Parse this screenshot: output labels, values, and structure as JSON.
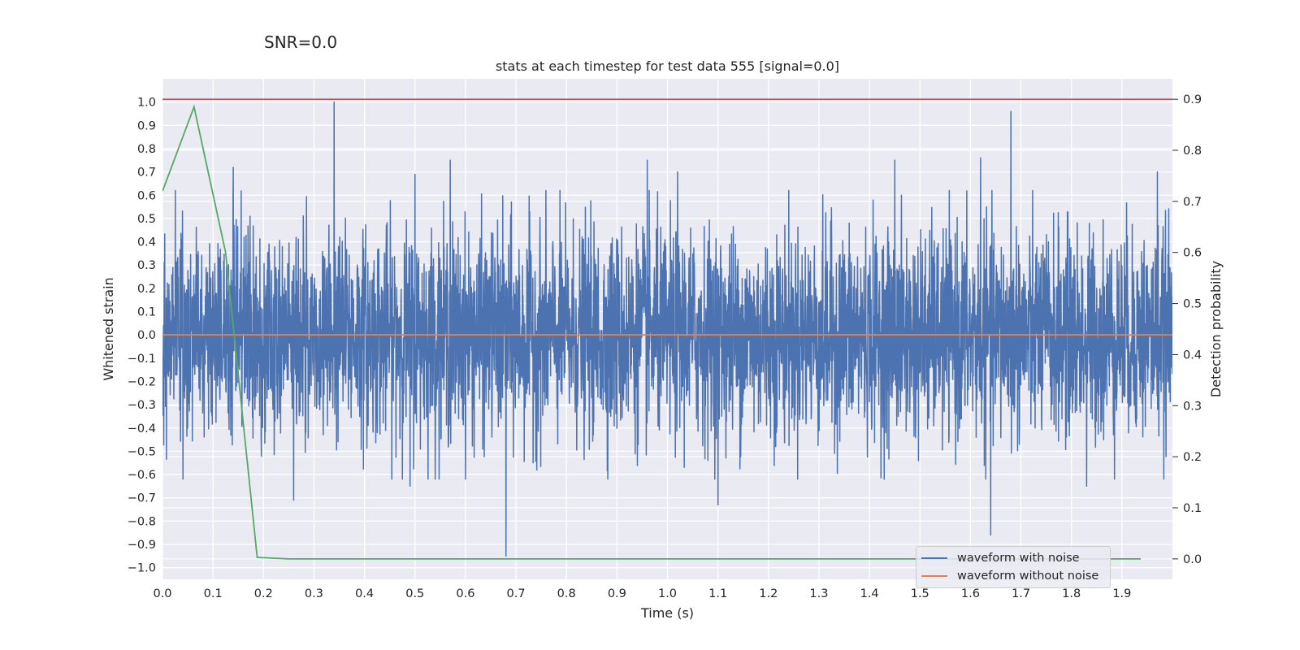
{
  "suptitle": "SNR=0.0",
  "chart_data": {
    "type": "line",
    "title": "stats at each timestep for test data 555 [signal=0.0]",
    "xlabel": "Time (s)",
    "ylabel": "Whitened strain",
    "y2label": "Detection probability",
    "xlim": [
      0.0,
      2.0
    ],
    "ylim": [
      -1.05,
      1.1
    ],
    "y2lim": [
      -0.04,
      0.94
    ],
    "xticks": [
      0.0,
      0.1,
      0.2,
      0.3,
      0.4,
      0.5,
      0.6,
      0.7,
      0.8,
      0.9,
      1.0,
      1.1,
      1.2,
      1.3,
      1.4,
      1.5,
      1.6,
      1.7,
      1.8,
      1.9
    ],
    "xtick_labels": [
      "0.0",
      "0.1",
      "0.2",
      "0.3",
      "0.4",
      "0.5",
      "0.6",
      "0.7",
      "0.8",
      "0.9",
      "1.0",
      "1.1",
      "1.2",
      "1.3",
      "1.4",
      "1.5",
      "1.6",
      "1.7",
      "1.8",
      "1.9"
    ],
    "yticks": [
      -1.0,
      -0.9,
      -0.8,
      -0.7,
      -0.6,
      -0.5,
      -0.4,
      -0.3,
      -0.2,
      -0.1,
      0.0,
      0.1,
      0.2,
      0.3,
      0.4,
      0.5,
      0.6,
      0.7,
      0.8,
      0.9,
      1.0
    ],
    "ytick_labels": [
      "−1.0",
      "−0.9",
      "−0.8",
      "−0.7",
      "−0.6",
      "−0.5",
      "−0.4",
      "−0.3",
      "−0.2",
      "−0.1",
      "0.0",
      "0.1",
      "0.2",
      "0.3",
      "0.4",
      "0.5",
      "0.6",
      "0.7",
      "0.8",
      "0.9",
      "1.0"
    ],
    "y2ticks": [
      0.0,
      0.1,
      0.2,
      0.3,
      0.4,
      0.5,
      0.6,
      0.7,
      0.8,
      0.9
    ],
    "y2tick_labels": [
      "0.0",
      "0.1",
      "0.2",
      "0.3",
      "0.4",
      "0.5",
      "0.6",
      "0.7",
      "0.8",
      "0.9"
    ],
    "grid": true,
    "legend_position": "lower-right",
    "threshold": {
      "value": 0.9,
      "axis": "y2",
      "color": "#c44e52"
    },
    "series": [
      {
        "name": "waveform with noise",
        "color": "#4c72b0",
        "axis": "y",
        "sample_rate_hz": 2048,
        "duration_s": 2.0,
        "noise_sigma": 0.22,
        "peaks": [
          {
            "x": 0.34,
            "y": 1.0
          },
          {
            "x": 0.68,
            "y": -0.95
          },
          {
            "x": 1.68,
            "y": 0.96
          },
          {
            "x": 1.64,
            "y": -0.86
          },
          {
            "x": 0.26,
            "y": -0.71
          },
          {
            "x": 1.1,
            "y": -0.73
          },
          {
            "x": 0.57,
            "y": 0.75
          },
          {
            "x": 0.96,
            "y": 0.75
          },
          {
            "x": 0.14,
            "y": 0.72
          },
          {
            "x": 1.45,
            "y": 0.75
          },
          {
            "x": 1.62,
            "y": 0.76
          },
          {
            "x": 1.97,
            "y": 0.7
          },
          {
            "x": 0.5,
            "y": 0.69
          },
          {
            "x": 1.02,
            "y": 0.7
          },
          {
            "x": 1.83,
            "y": -0.65
          },
          {
            "x": 0.49,
            "y": -0.65
          }
        ]
      },
      {
        "name": "waveform without noise",
        "color": "#dd8452",
        "axis": "y",
        "x": [
          0.0,
          2.0
        ],
        "y": [
          0.0,
          0.0
        ]
      },
      {
        "name": "",
        "color": "#55a868",
        "axis": "y2",
        "x": [
          0.0,
          0.0625,
          0.125,
          0.1875,
          0.25,
          0.3125,
          0.375,
          0.4375,
          0.5,
          0.5625,
          0.625,
          0.6875,
          0.75,
          0.8125,
          0.875,
          0.9375,
          1.0,
          1.0625,
          1.125,
          1.1875,
          1.25,
          1.3125,
          1.375,
          1.4375,
          1.5,
          1.5625,
          1.625,
          1.6875,
          1.75,
          1.8125,
          1.875,
          1.9375
        ],
        "y": [
          0.72,
          0.885,
          0.6,
          0.003,
          0.0,
          0.0,
          0.0,
          0.0,
          0.0,
          0.0,
          0.0,
          0.0,
          0.0,
          0.0,
          0.0,
          0.0,
          0.0,
          0.0,
          0.0,
          0.0,
          0.0,
          0.0,
          0.0,
          0.0,
          0.0,
          0.0,
          0.0,
          0.0,
          0.0,
          0.0,
          0.0,
          0.0
        ]
      }
    ]
  }
}
